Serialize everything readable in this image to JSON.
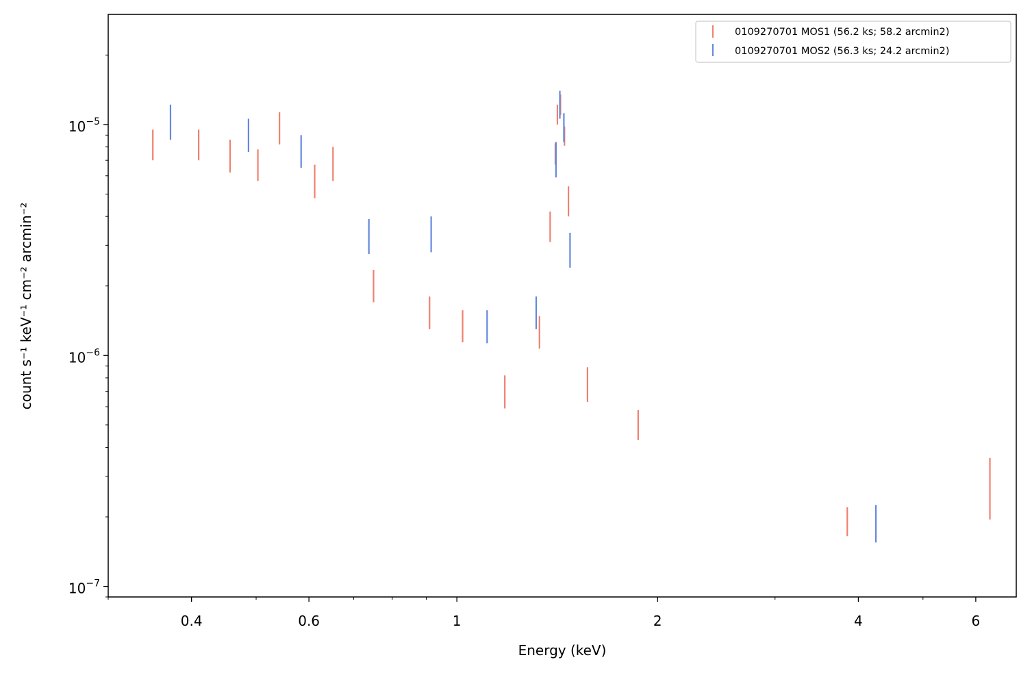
{
  "chart_data": {
    "type": "scatter",
    "xlabel": "Energy (keV)",
    "ylabel": "count s⁻¹ keV⁻¹ cm⁻² arcmin⁻²",
    "xscale": "log",
    "yscale": "log",
    "xlim": [
      0.3,
      6.9
    ],
    "ylim": [
      9e-08,
      3e-05
    ],
    "x_ticks": [
      {
        "value": 0.4,
        "label": "0.4"
      },
      {
        "value": 0.6,
        "label": "0.6"
      },
      {
        "value": 1,
        "label": "1"
      },
      {
        "value": 2,
        "label": "2"
      },
      {
        "value": 4,
        "label": "4"
      },
      {
        "value": 6,
        "label": "6"
      }
    ],
    "y_ticks": [
      {
        "value": 1e-05,
        "base": "10",
        "exp": "−5"
      },
      {
        "value": 1e-06,
        "base": "10",
        "exp": "−6"
      },
      {
        "value": 1e-07,
        "base": "10",
        "exp": "−7"
      }
    ],
    "legend_position": "top-right",
    "grid": false,
    "series": [
      {
        "name": "0109270701 MOS1 (56.2 ks; 58.2 arcmin2)",
        "color": "#f08070",
        "points": [
          {
            "x": 0.35,
            "lo": 7e-06,
            "hi": 9.5e-06
          },
          {
            "x": 0.41,
            "lo": 7e-06,
            "hi": 9.5e-06
          },
          {
            "x": 0.457,
            "lo": 6.2e-06,
            "hi": 8.6e-06
          },
          {
            "x": 0.503,
            "lo": 5.7e-06,
            "hi": 7.8e-06
          },
          {
            "x": 0.542,
            "lo": 8.2e-06,
            "hi": 1.13e-05
          },
          {
            "x": 0.612,
            "lo": 4.8e-06,
            "hi": 6.7e-06
          },
          {
            "x": 0.652,
            "lo": 5.7e-06,
            "hi": 8e-06
          },
          {
            "x": 0.75,
            "lo": 1.7e-06,
            "hi": 2.35e-06
          },
          {
            "x": 0.91,
            "lo": 1.3e-06,
            "hi": 1.8e-06
          },
          {
            "x": 1.02,
            "lo": 1.14e-06,
            "hi": 1.57e-06
          },
          {
            "x": 1.18,
            "lo": 5.9e-07,
            "hi": 8.2e-07
          },
          {
            "x": 1.33,
            "lo": 1.07e-06,
            "hi": 1.48e-06
          },
          {
            "x": 1.38,
            "lo": 3.1e-06,
            "hi": 4.2e-06
          },
          {
            "x": 1.405,
            "lo": 6.7e-06,
            "hi": 8.3e-06
          },
          {
            "x": 1.415,
            "lo": 1e-05,
            "hi": 1.22e-05
          },
          {
            "x": 1.43,
            "lo": 1.1e-05,
            "hi": 1.35e-05
          },
          {
            "x": 1.45,
            "lo": 8.1e-06,
            "hi": 9.8e-06
          },
          {
            "x": 1.47,
            "lo": 4e-06,
            "hi": 5.4e-06
          },
          {
            "x": 1.57,
            "lo": 6.3e-07,
            "hi": 8.9e-07
          },
          {
            "x": 1.87,
            "lo": 4.3e-07,
            "hi": 5.8e-07
          },
          {
            "x": 3.85,
            "lo": 1.65e-07,
            "hi": 2.2e-07
          },
          {
            "x": 6.3,
            "lo": 1.95e-07,
            "hi": 3.6e-07
          }
        ]
      },
      {
        "name": "0109270701 MOS2 (56.3 ks; 24.2 arcmin2)",
        "color": "#6688dd",
        "points": [
          {
            "x": 0.372,
            "lo": 8.6e-06,
            "hi": 1.22e-05
          },
          {
            "x": 0.487,
            "lo": 7.6e-06,
            "hi": 1.06e-05
          },
          {
            "x": 0.584,
            "lo": 6.5e-06,
            "hi": 9e-06
          },
          {
            "x": 0.738,
            "lo": 2.75e-06,
            "hi": 3.9e-06
          },
          {
            "x": 0.915,
            "lo": 2.8e-06,
            "hi": 4e-06
          },
          {
            "x": 1.11,
            "lo": 1.13e-06,
            "hi": 1.57e-06
          },
          {
            "x": 1.315,
            "lo": 1.3e-06,
            "hi": 1.8e-06
          },
          {
            "x": 1.408,
            "lo": 5.9e-06,
            "hi": 8.4e-06
          },
          {
            "x": 1.427,
            "lo": 1.06e-05,
            "hi": 1.4e-05
          },
          {
            "x": 1.447,
            "lo": 8.4e-06,
            "hi": 1.12e-05
          },
          {
            "x": 1.478,
            "lo": 2.4e-06,
            "hi": 3.4e-06
          },
          {
            "x": 4.25,
            "lo": 1.55e-07,
            "hi": 2.25e-07
          }
        ]
      }
    ]
  }
}
